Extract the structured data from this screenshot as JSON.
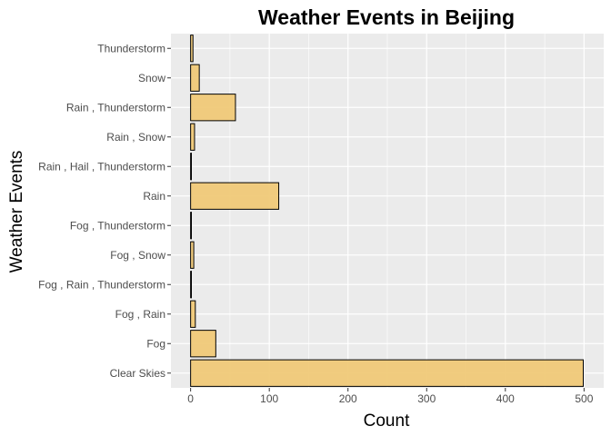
{
  "chart_data": {
    "type": "bar",
    "orientation": "horizontal",
    "title": "Weather Events in Beijing",
    "xlabel": "Count",
    "ylabel": "Weather Events",
    "categories": [
      "Clear Skies",
      "Fog",
      "Fog , Rain",
      "Fog , Rain , Thunderstorm",
      "Fog , Snow",
      "Fog , Thunderstorm",
      "Rain",
      "Rain , Hail , Thunderstorm",
      "Rain , Snow",
      "Rain , Thunderstorm",
      "Snow",
      "Thunderstorm"
    ],
    "values": [
      499,
      32,
      6,
      1,
      4,
      1,
      112,
      1,
      5,
      57,
      11,
      3
    ],
    "xlim": [
      -25,
      525
    ],
    "xticks": [
      0,
      100,
      200,
      300,
      400,
      500
    ],
    "grid": true,
    "colors": {
      "bar_fill": "#f0c978",
      "bar_stroke": "#000000",
      "panel_bg": "#ebebeb",
      "grid_major": "#ffffff"
    }
  }
}
